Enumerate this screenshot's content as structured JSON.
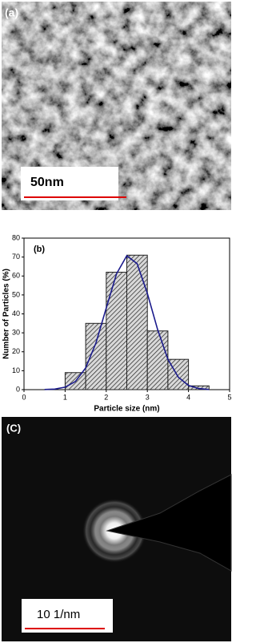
{
  "panel_a": {
    "label": "(a)",
    "scale_bar": "50nm"
  },
  "chart_data": {
    "type": "histogram",
    "panel_label": "(b)",
    "xlabel": "Particle size (nm)",
    "ylabel": "Number of Particles (%)",
    "bins": [
      1,
      1.5,
      2,
      2.5,
      3,
      3.5,
      4,
      4.5
    ],
    "values": [
      9,
      35,
      62,
      71,
      31,
      16,
      2
    ],
    "color": "#d9d9d9",
    "fit": {
      "color": "#1a1a8c",
      "x": [
        0.5,
        0.75,
        1,
        1.25,
        1.5,
        1.75,
        2,
        2.25,
        2.5,
        2.75,
        3,
        3.25,
        3.5,
        3.75,
        4,
        4.25,
        4.5
      ],
      "values": [
        0.1,
        0.3,
        1.3,
        4.3,
        11.5,
        24.6,
        43.1,
        61.2,
        70.7,
        66.5,
        50.8,
        31.6,
        16.0,
        6.6,
        2.2,
        0.6,
        0.1
      ]
    },
    "xlim": [
      0,
      5
    ],
    "xticks": [
      0,
      1,
      2,
      3,
      4,
      5
    ],
    "ylim": [
      0,
      80
    ],
    "yticks": [
      0,
      10,
      20,
      30,
      40,
      50,
      60,
      70,
      80
    ]
  },
  "panel_c": {
    "label": "(C)",
    "scale_bar": "10 1/nm"
  }
}
